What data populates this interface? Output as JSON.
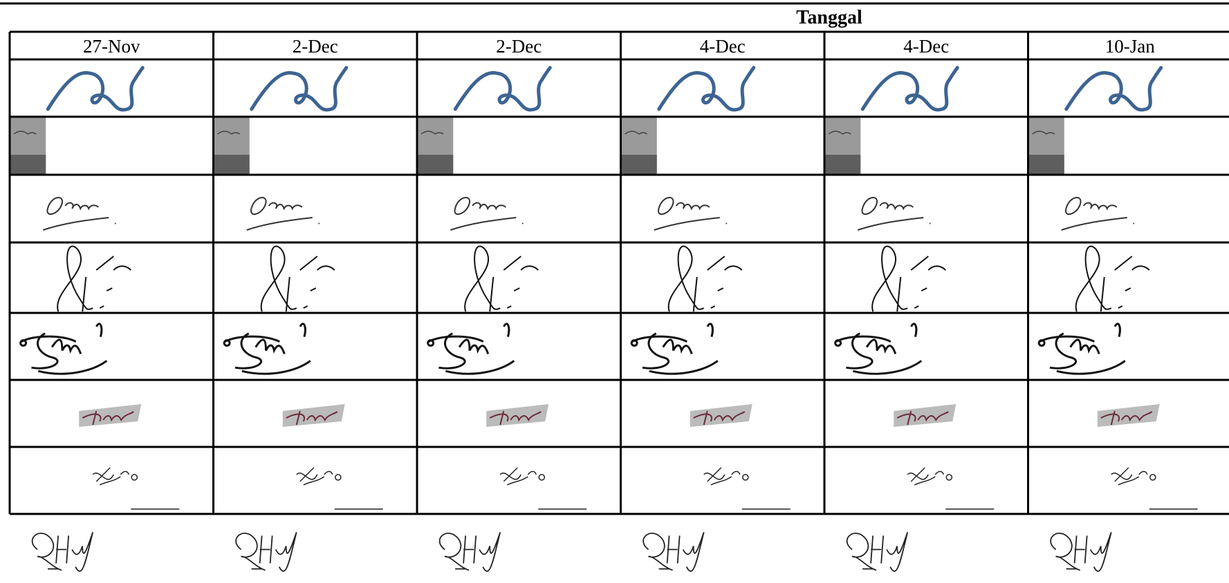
{
  "header": {
    "title": "Tanggal"
  },
  "table": {
    "columns": [
      "27-Nov",
      "2-Dec",
      "2-Dec",
      "4-Dec",
      "4-Dec",
      "10-Jan"
    ]
  }
}
